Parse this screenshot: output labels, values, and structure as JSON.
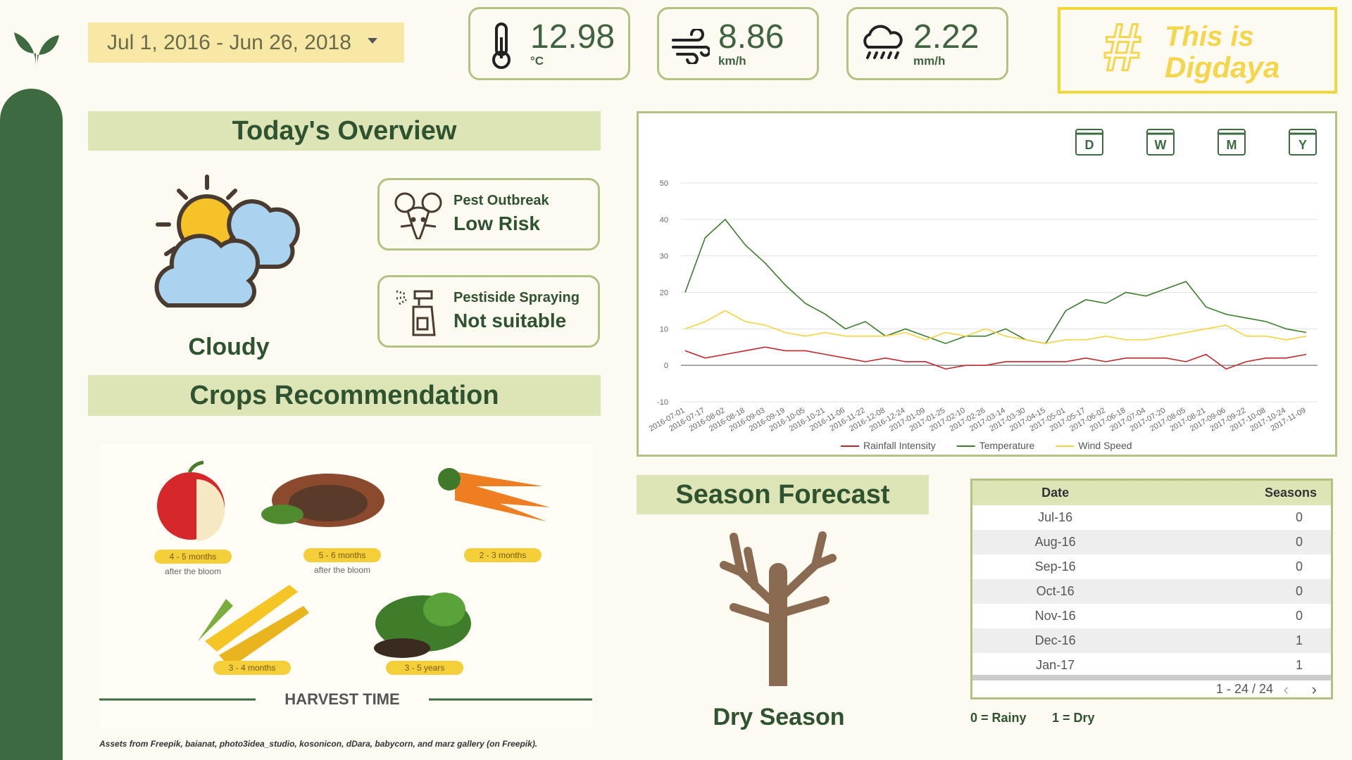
{
  "date_range": "Jul 1, 2016 - Jun 26, 2018",
  "metrics": [
    {
      "value": 12.98,
      "unit": "°C"
    },
    {
      "value": 8.86,
      "unit": "km/h"
    },
    {
      "value": 2.22,
      "unit": "mm/h"
    }
  ],
  "brand": {
    "hash": "#",
    "line1": "This is",
    "line2": "Digdaya"
  },
  "overview": {
    "title": "Today's Overview",
    "weather": "Cloudy",
    "alerts": [
      {
        "label": "Pest Outbreak",
        "status": "Low Risk"
      },
      {
        "label": "Pestiside Spraying",
        "status": "Not suitable"
      }
    ]
  },
  "crops": {
    "title": "Crops Recommendation",
    "items": [
      {
        "label": "4 - 5 months",
        "note": "after the bloom"
      },
      {
        "label": "5 - 6 months",
        "note": "after the bloom"
      },
      {
        "label": "2 - 3 months"
      },
      {
        "label": "3 - 4 months"
      },
      {
        "label": "3 - 5 years"
      }
    ],
    "footer": "HARVEST TIME"
  },
  "credits": "Assets from Freepik, baianat, photo3idea_studio, kosonicon, dDara, babycorn, and marz gallery (on Freepik).",
  "period_buttons": [
    "D",
    "W",
    "M",
    "Y"
  ],
  "chart_data": {
    "type": "line",
    "x": [
      "2016-07-01",
      "2016-07-17",
      "2016-08-02",
      "2016-08-18",
      "2016-09-03",
      "2016-09-19",
      "2016-10-05",
      "2016-10-21",
      "2016-11-06",
      "2016-11-22",
      "2016-12-08",
      "2016-12-24",
      "2017-01-09",
      "2017-01-25",
      "2017-02-10",
      "2017-02-26",
      "2017-03-14",
      "2017-03-30",
      "2017-04-15",
      "2017-05-01",
      "2017-05-17",
      "2017-06-02",
      "2017-06-18",
      "2017-07-04",
      "2017-07-20",
      "2017-08-05",
      "2017-08-21",
      "2017-09-06",
      "2017-09-22",
      "2017-10-08",
      "2017-10-24",
      "2017-11-09"
    ],
    "series": [
      {
        "name": "Rainfall Intensity",
        "color": "#c0272d",
        "values": [
          4,
          2,
          3,
          4,
          5,
          4,
          4,
          3,
          2,
          1,
          2,
          1,
          1,
          -1,
          0,
          0,
          1,
          1,
          1,
          1,
          2,
          1,
          2,
          2,
          2,
          1,
          3,
          -1,
          1,
          2,
          2,
          3
        ]
      },
      {
        "name": "Temperature",
        "color": "#3a7d2c",
        "values": [
          20,
          35,
          40,
          33,
          28,
          22,
          17,
          14,
          10,
          12,
          8,
          10,
          8,
          6,
          8,
          8,
          10,
          7,
          6,
          15,
          18,
          17,
          20,
          19,
          21,
          23,
          16,
          14,
          13,
          12,
          10,
          9
        ]
      },
      {
        "name": "Wind Speed",
        "color": "#f5d33f",
        "values": [
          10,
          12,
          15,
          12,
          11,
          9,
          8,
          9,
          8,
          8,
          8,
          9,
          7,
          9,
          8,
          10,
          8,
          7,
          6,
          7,
          7,
          8,
          7,
          7,
          8,
          9,
          10,
          11,
          8,
          8,
          7,
          8
        ]
      }
    ],
    "ylim": [
      -10,
      50
    ],
    "yticks": [
      -10,
      0,
      10,
      20,
      30,
      40,
      50
    ],
    "grid": true,
    "legend": "bottom"
  },
  "season": {
    "title": "Season Forecast",
    "forecast": "Dry Season"
  },
  "table": {
    "columns": [
      "Date",
      "Seasons"
    ],
    "rows": [
      [
        "Jul-16",
        0
      ],
      [
        "Aug-16",
        0
      ],
      [
        "Sep-16",
        0
      ],
      [
        "Oct-16",
        0
      ],
      [
        "Nov-16",
        0
      ],
      [
        "Dec-16",
        1
      ],
      [
        "Jan-17",
        1
      ]
    ],
    "pagination": "1 - 24 / 24",
    "legend": [
      "0 = Rainy",
      "1 = Dry"
    ]
  }
}
